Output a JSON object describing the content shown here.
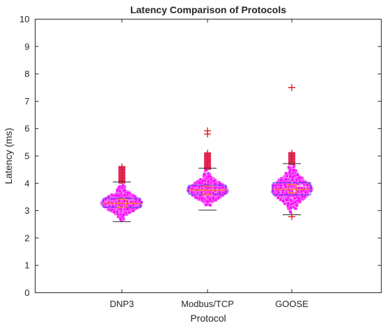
{
  "chart_data": {
    "type": "box",
    "title": "Latency Comparison of Protocols",
    "xlabel": "Protocol",
    "ylabel": "Latency (ms)",
    "ylim": [
      0,
      10
    ],
    "yticks": [
      "0",
      "1",
      "2",
      "3",
      "4",
      "5",
      "6",
      "7",
      "8",
      "9",
      "10"
    ],
    "categories": [
      "DNP3",
      "Modbus/TCP",
      "GOOSE"
    ],
    "grid": false,
    "colors": {
      "box": "#4a4af0",
      "median": "#ff8a00",
      "mean_marker": "#ff8a00",
      "whisker": "#262626",
      "outlier": "#e0201f",
      "swarm": "#ff00ff",
      "swarm_halo": "#f0b6f0"
    },
    "boxes": [
      {
        "category": "DNP3",
        "whisker_low": 2.6,
        "q1": 3.12,
        "median": 3.27,
        "q3": 3.45,
        "whisker_high": 4.05,
        "mean": 3.27,
        "outliers": [
          4.1,
          4.2,
          4.3,
          4.4,
          4.5,
          4.6
        ]
      },
      {
        "category": "Modbus/TCP",
        "whisker_low": 3.02,
        "q1": 3.6,
        "median": 3.75,
        "q3": 3.93,
        "whisker_high": 4.55,
        "mean": 3.75,
        "outliers": [
          4.6,
          4.7,
          4.8,
          4.9,
          5.0,
          5.1,
          5.8,
          5.92
        ]
      },
      {
        "category": "GOOSE",
        "whisker_low": 2.85,
        "q1": 3.58,
        "median": 3.78,
        "q3": 4.02,
        "whisker_high": 4.72,
        "mean": 3.8,
        "outliers": [
          2.78,
          4.8,
          4.9,
          5.0,
          5.1,
          7.5
        ]
      }
    ]
  }
}
